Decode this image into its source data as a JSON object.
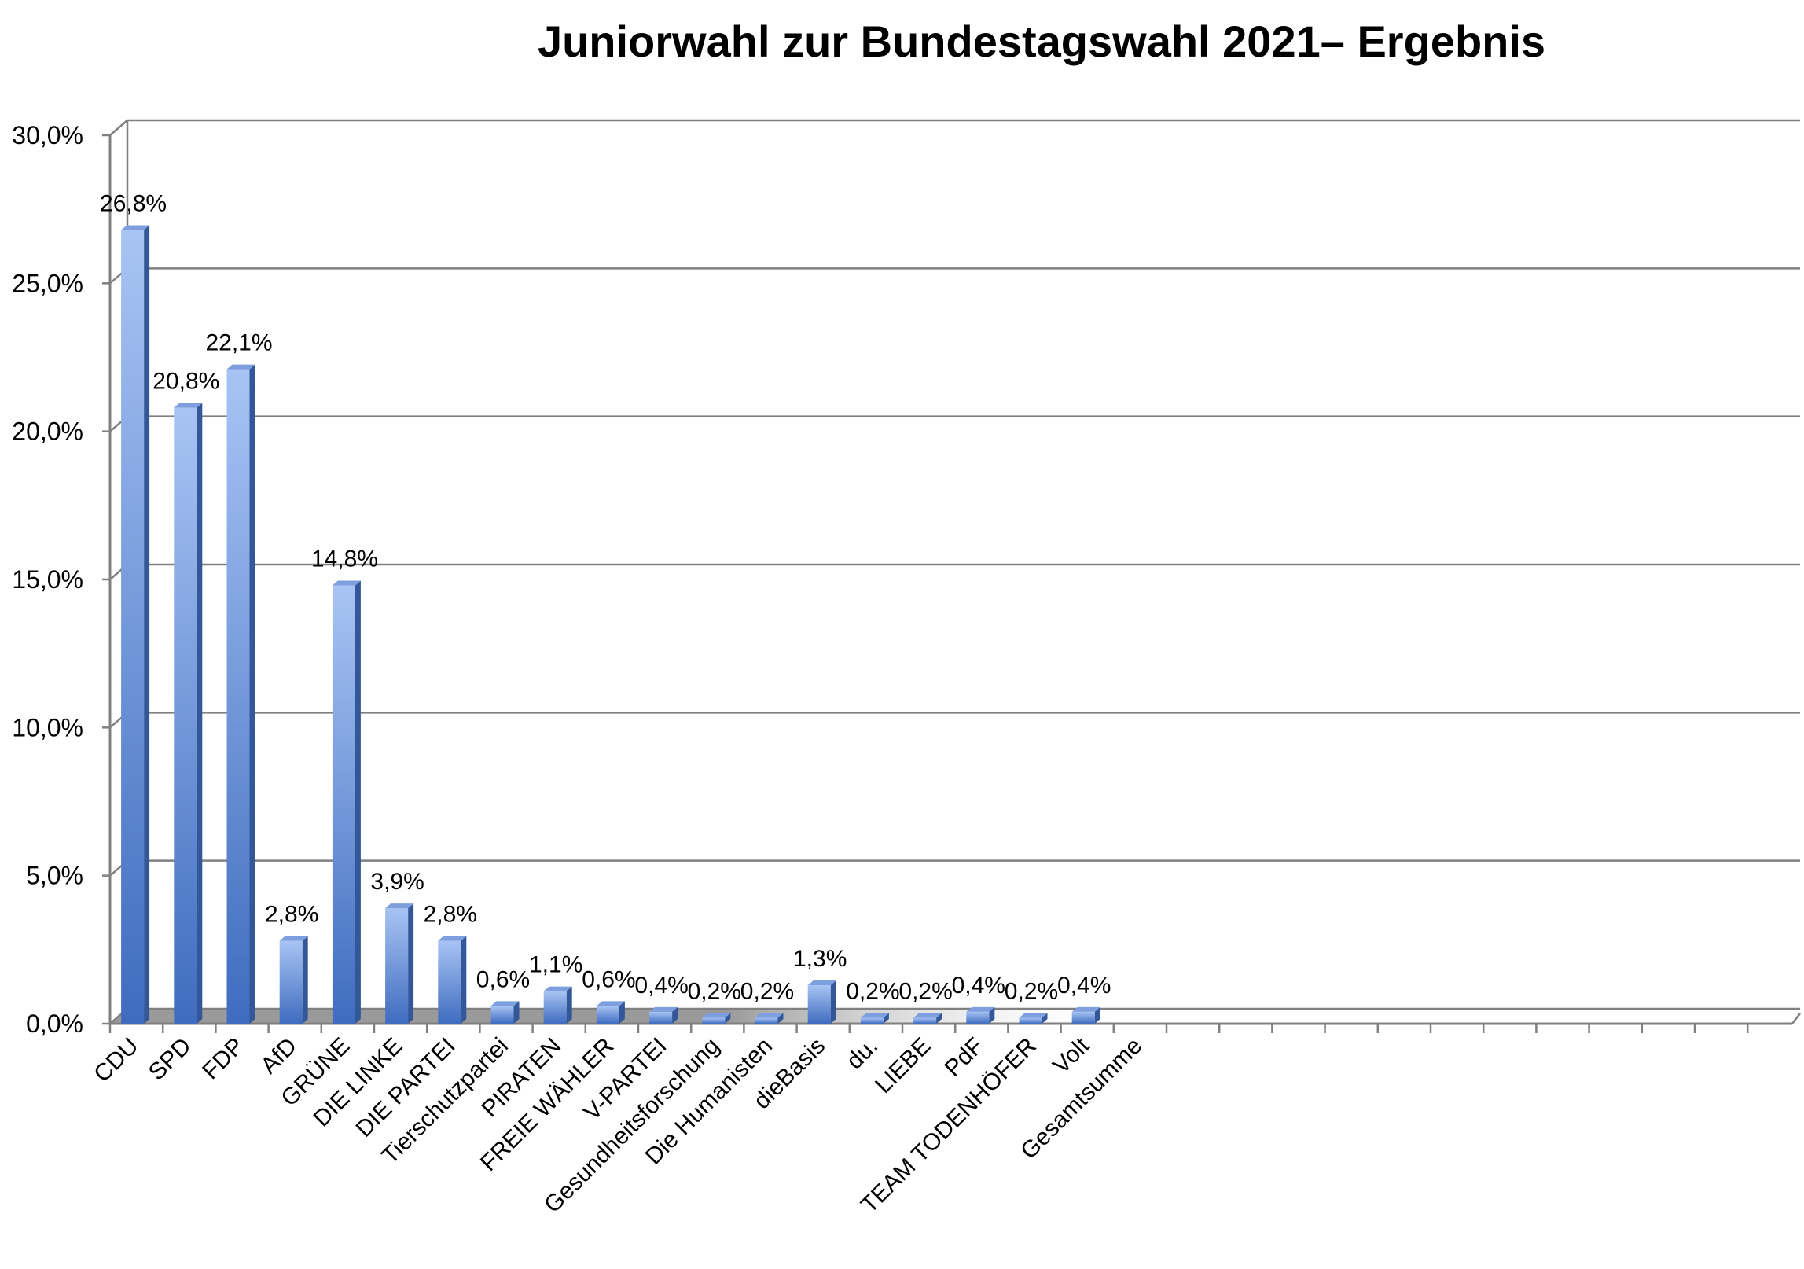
{
  "chart_data": {
    "type": "bar",
    "title": "Juniorwahl zur Bundestagswahl 2021– Ergebnis",
    "xlabel": "",
    "ylabel": "",
    "ylim": [
      0,
      30
    ],
    "yticks": [
      0,
      5,
      10,
      15,
      20,
      25,
      30
    ],
    "ytick_labels": [
      "0,0%",
      "5,0%",
      "10,0%",
      "15,0%",
      "20,0%",
      "25,0%",
      "30,0%"
    ],
    "grid": true,
    "legend": "none",
    "style": "3d-column",
    "categories": [
      "CDU",
      "SPD",
      "FDP",
      "AfD",
      "GRÜNE",
      "DIE LINKE",
      "DIE PARTEI",
      "Tierschutzpartei",
      "PIRATEN",
      "FREIE WÄHLER",
      "V-PARTEI",
      "Gesundheitsforschung",
      "Die Humanisten",
      "dieBasis",
      "du.",
      "LIEBE",
      "PdF",
      "TEAM TODENHÖFER",
      "Volt",
      "Gesamtsumme"
    ],
    "values": [
      26.8,
      20.8,
      22.1,
      2.8,
      14.8,
      3.9,
      2.8,
      0.6,
      1.1,
      0.6,
      0.4,
      0.2,
      0.2,
      1.3,
      0.2,
      0.2,
      0.4,
      0.2,
      0.4,
      null
    ],
    "data_labels": [
      "26,8%",
      "20,8%",
      "22,1%",
      "2,8%",
      "14,8%",
      "3,9%",
      "2,8%",
      "0,6%",
      "1,1%",
      "0,6%",
      "0,4%",
      "0,2%",
      "0,2%",
      "1,3%",
      "0,2%",
      "0,2%",
      "0,4%",
      "0,2%",
      "0,4%",
      ""
    ],
    "colors": {
      "bar_front_light": "#a8c4f4",
      "bar_front_dark": "#3f6cbf",
      "bar_side": "#34579a",
      "bar_top": "#7e9fde",
      "grid": "#808080",
      "floor": "#9a9a9a"
    }
  }
}
